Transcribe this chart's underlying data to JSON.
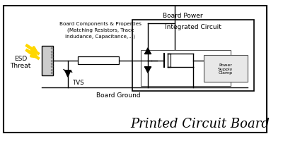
{
  "title": "Printed Circuit Board",
  "title_fontsize": 13,
  "board_power_label": "Board Power",
  "board_ground_label": "Board Ground",
  "ic_label": "Integrated Circuit",
  "esd_label": "ESD\nThreat",
  "tvs_label": "TVS",
  "board_components_label": "Board Components & Properties\n(Matching Resistors, Trace\nIndudance, Capacitance,...)",
  "power_supply_label": "Power\nSupply\nClamp",
  "arrow_color": "#FFD700",
  "line_color": "#000000",
  "bg_color": "#ffffff",
  "ic_fill": "#ffffff",
  "psc_fill": "#e8e8e8",
  "conn_fill": "#cccccc"
}
